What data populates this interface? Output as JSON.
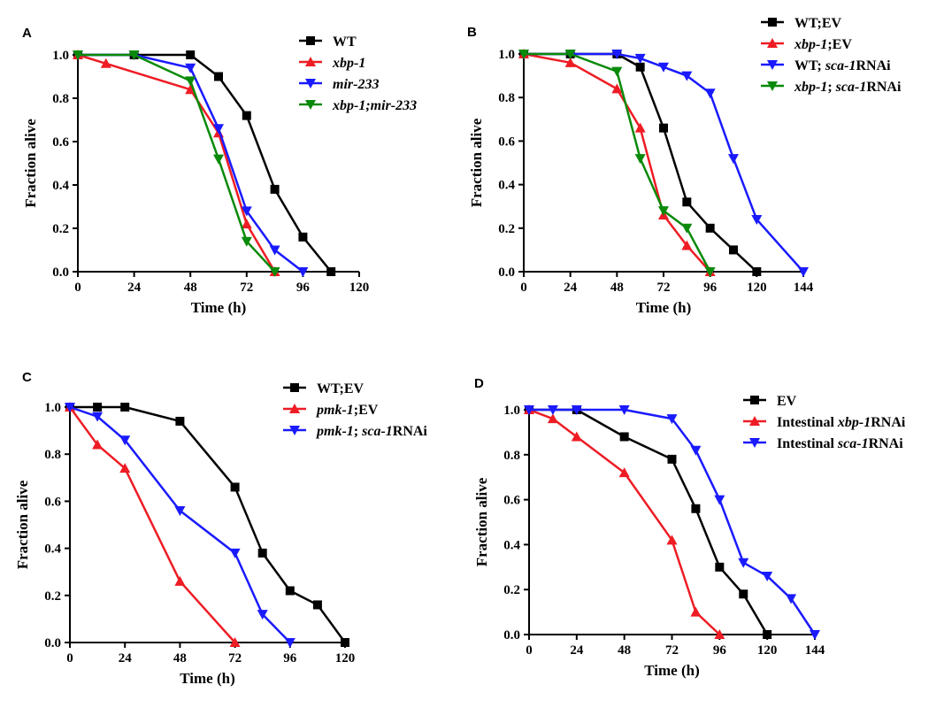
{
  "chart_data": [
    {
      "panel": "A",
      "type": "line",
      "xlabel": "Time (h)",
      "ylabel": "Fraction alive",
      "xlim": [
        0,
        120
      ],
      "ylim": [
        0,
        1.0
      ],
      "xticks": [
        "0",
        "24",
        "48",
        "72",
        "96",
        "120"
      ],
      "yticks": [
        "0.0",
        "0.2",
        "0.4",
        "0.6",
        "0.8",
        "1.0"
      ],
      "legend_position": "top-right",
      "series": [
        {
          "name": "WT",
          "name_parts": [
            {
              "t": "WT",
              "i": false
            }
          ],
          "color": "#000000",
          "marker": "square",
          "x": [
            0,
            24,
            48,
            60,
            72,
            84,
            96,
            108
          ],
          "y": [
            1.0,
            1.0,
            1.0,
            0.9,
            0.72,
            0.38,
            0.16,
            0.0
          ]
        },
        {
          "name": "xbp-1",
          "name_parts": [
            {
              "t": "xbp-1",
              "i": true
            }
          ],
          "color": "#ee1c24",
          "marker": "triangle-up",
          "x": [
            0,
            12,
            48,
            60,
            72,
            84
          ],
          "y": [
            1.0,
            0.96,
            0.84,
            0.64,
            0.22,
            0.0
          ]
        },
        {
          "name": "mir-233",
          "name_parts": [
            {
              "t": "mir-233",
              "i": true
            }
          ],
          "color": "#1a1aff",
          "marker": "triangle-down",
          "x": [
            0,
            24,
            48,
            60,
            72,
            84,
            96
          ],
          "y": [
            1.0,
            1.0,
            0.94,
            0.66,
            0.28,
            0.1,
            0.0
          ]
        },
        {
          "name": "xbp-1;mir-233",
          "name_parts": [
            {
              "t": "xbp-1;mir-233",
              "i": true
            }
          ],
          "color": "#0a8a0a",
          "marker": "triangle-down",
          "x": [
            0,
            24,
            48,
            60,
            72,
            84
          ],
          "y": [
            1.0,
            1.0,
            0.88,
            0.52,
            0.14,
            0.0
          ]
        }
      ]
    },
    {
      "panel": "B",
      "type": "line",
      "xlabel": "Time (h)",
      "ylabel": "Fraction alive",
      "xlim": [
        0,
        144
      ],
      "ylim": [
        0,
        1.0
      ],
      "xticks": [
        "0",
        "24",
        "48",
        "72",
        "96",
        "120",
        "144"
      ],
      "yticks": [
        "0.0",
        "0.2",
        "0.4",
        "0.6",
        "0.8",
        "1.0"
      ],
      "legend_position": "top-right",
      "series": [
        {
          "name": "WT;EV",
          "name_parts": [
            {
              "t": "WT;EV",
              "i": false
            }
          ],
          "color": "#000000",
          "marker": "square",
          "x": [
            0,
            24,
            48,
            60,
            72,
            84,
            96,
            108,
            120
          ],
          "y": [
            1.0,
            1.0,
            1.0,
            0.94,
            0.66,
            0.32,
            0.2,
            0.1,
            0.0
          ]
        },
        {
          "name": "xbp-1;EV",
          "name_parts": [
            {
              "t": "xbp-1",
              "i": true
            },
            {
              "t": ";EV",
              "i": false
            }
          ],
          "color": "#ee1c24",
          "marker": "triangle-up",
          "x": [
            0,
            24,
            48,
            60,
            72,
            84,
            96
          ],
          "y": [
            1.0,
            0.96,
            0.84,
            0.66,
            0.26,
            0.12,
            0.0
          ]
        },
        {
          "name": "WT; sca-1RNAi",
          "name_parts": [
            {
              "t": "WT; ",
              "i": false
            },
            {
              "t": "sca-1",
              "i": true
            },
            {
              "t": "RNAi",
              "i": false
            }
          ],
          "color": "#1a1aff",
          "marker": "triangle-down",
          "x": [
            0,
            24,
            48,
            60,
            72,
            84,
            96,
            108,
            120,
            144
          ],
          "y": [
            1.0,
            1.0,
            1.0,
            0.98,
            0.94,
            0.9,
            0.82,
            0.52,
            0.24,
            0.0
          ]
        },
        {
          "name": "xbp-1; sca-1RNAi",
          "name_parts": [
            {
              "t": "xbp-1",
              "i": true
            },
            {
              "t": "; ",
              "i": false
            },
            {
              "t": "sca-1",
              "i": true
            },
            {
              "t": "RNAi",
              "i": false
            }
          ],
          "color": "#0a8a0a",
          "marker": "triangle-down",
          "x": [
            0,
            24,
            48,
            60,
            72,
            84,
            96
          ],
          "y": [
            1.0,
            1.0,
            0.92,
            0.52,
            0.28,
            0.2,
            0.0
          ]
        }
      ]
    },
    {
      "panel": "C",
      "type": "line",
      "xlabel": "Time (h)",
      "ylabel": "Fraction alive",
      "xlim": [
        0,
        120
      ],
      "ylim": [
        0,
        1.0
      ],
      "xticks": [
        "0",
        "24",
        "48",
        "72",
        "96",
        "120"
      ],
      "yticks": [
        "0.0",
        "0.2",
        "0.4",
        "0.6",
        "0.8",
        "1.0"
      ],
      "legend_position": "top-right",
      "series": [
        {
          "name": "WT;EV",
          "name_parts": [
            {
              "t": "WT;EV",
              "i": false
            }
          ],
          "color": "#000000",
          "marker": "square",
          "x": [
            0,
            12,
            24,
            48,
            72,
            84,
            96,
            108,
            120
          ],
          "y": [
            1.0,
            1.0,
            1.0,
            0.94,
            0.66,
            0.38,
            0.22,
            0.16,
            0.0
          ]
        },
        {
          "name": "pmk-1;EV",
          "name_parts": [
            {
              "t": "pmk-1",
              "i": true
            },
            {
              "t": ";EV",
              "i": false
            }
          ],
          "color": "#ee1c24",
          "marker": "triangle-up",
          "x": [
            0,
            12,
            24,
            48,
            72
          ],
          "y": [
            1.0,
            0.84,
            0.74,
            0.26,
            0.0
          ]
        },
        {
          "name": "pmk-1; sca-1RNAi",
          "name_parts": [
            {
              "t": "pmk-1",
              "i": true
            },
            {
              "t": "; ",
              "i": false
            },
            {
              "t": "sca-1",
              "i": true
            },
            {
              "t": "RNAi",
              "i": false
            }
          ],
          "color": "#1a1aff",
          "marker": "triangle-down",
          "x": [
            0,
            12,
            24,
            48,
            72,
            84,
            96
          ],
          "y": [
            1.0,
            0.96,
            0.86,
            0.56,
            0.38,
            0.12,
            0.0
          ]
        }
      ]
    },
    {
      "panel": "D",
      "type": "line",
      "xlabel": "Time (h)",
      "ylabel": "Fraction alive",
      "xlim": [
        0,
        144
      ],
      "ylim": [
        0,
        1.0
      ],
      "xticks": [
        "0",
        "24",
        "48",
        "72",
        "96",
        "120",
        "144"
      ],
      "yticks": [
        "0.0",
        "0.2",
        "0.4",
        "0.6",
        "0.8",
        "1.0"
      ],
      "legend_position": "top-right",
      "series": [
        {
          "name": "EV",
          "name_parts": [
            {
              "t": "EV",
              "i": false
            }
          ],
          "color": "#000000",
          "marker": "square",
          "x": [
            0,
            24,
            48,
            72,
            84,
            96,
            108,
            120
          ],
          "y": [
            1.0,
            1.0,
            0.88,
            0.78,
            0.56,
            0.3,
            0.18,
            0.0
          ]
        },
        {
          "name": "Intestinal xbp-1RNAi",
          "name_parts": [
            {
              "t": "Intestinal ",
              "i": false
            },
            {
              "t": "xbp-1",
              "i": true
            },
            {
              "t": "RNAi",
              "i": false
            }
          ],
          "color": "#ee1c24",
          "marker": "triangle-up",
          "x": [
            0,
            12,
            24,
            48,
            72,
            84,
            96
          ],
          "y": [
            1.0,
            0.96,
            0.88,
            0.72,
            0.42,
            0.1,
            0.0
          ]
        },
        {
          "name": "Intestinal sca-1RNAi",
          "name_parts": [
            {
              "t": "Intestinal ",
              "i": false
            },
            {
              "t": "sca-1",
              "i": true
            },
            {
              "t": "RNAi",
              "i": false
            }
          ],
          "color": "#1a1aff",
          "marker": "triangle-down",
          "x": [
            0,
            12,
            24,
            48,
            72,
            84,
            96,
            108,
            120,
            132,
            144
          ],
          "y": [
            1.0,
            1.0,
            1.0,
            1.0,
            0.96,
            0.82,
            0.6,
            0.32,
            0.26,
            0.16,
            0.0
          ]
        }
      ]
    }
  ]
}
